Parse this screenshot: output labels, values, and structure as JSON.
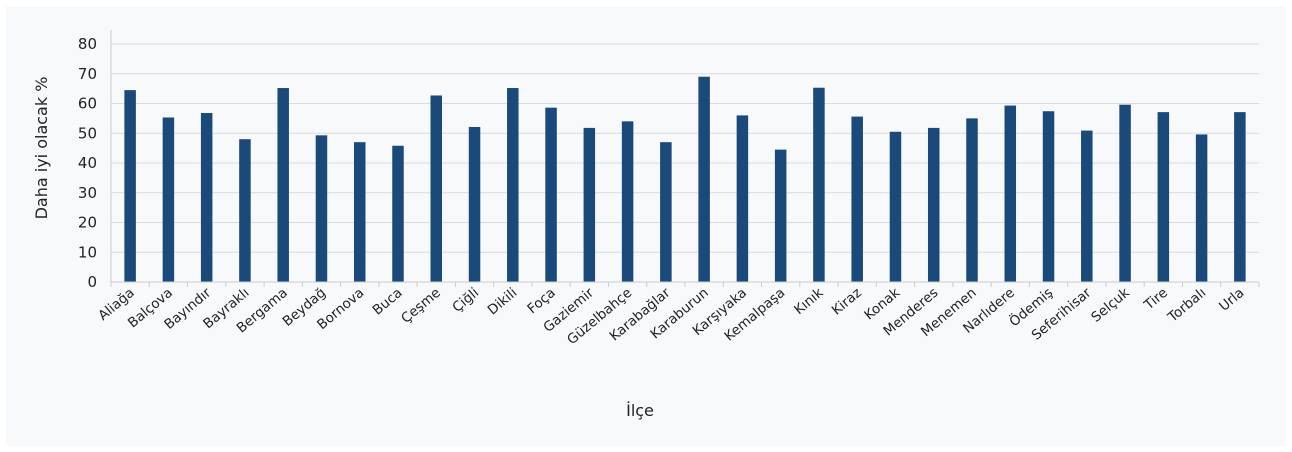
{
  "chart_data": {
    "type": "bar",
    "title": "",
    "xlabel": "İlçe",
    "ylabel": "Daha iyi olacak %",
    "ylim": [
      0,
      80
    ],
    "yticks": [
      0,
      10,
      20,
      30,
      40,
      50,
      60,
      70,
      80
    ],
    "grid": true,
    "bar_color": "#1a4a7a",
    "categories": [
      "Aliağa",
      "Balçova",
      "Bayındır",
      "Bayraklı",
      "Bergama",
      "Beydağ",
      "Bornova",
      "Buca",
      "Çeşme",
      "Çiğli",
      "Dikili",
      "Foça",
      "Gaziemir",
      "Güzelbahçe",
      "Karabağlar",
      "Karaburun",
      "Karşıyaka",
      "Kemalpaşa",
      "Kınık",
      "Kiraz",
      "Konak",
      "Menderes",
      "Menemen",
      "Narlıdere",
      "Ödemiş",
      "Seferihisar",
      "Selçuk",
      "Tire",
      "Torbalı",
      "Urla"
    ],
    "values": [
      64.5,
      55.3,
      56.8,
      48.0,
      65.2,
      49.3,
      47.0,
      45.8,
      62.7,
      52.1,
      65.2,
      58.6,
      51.8,
      54.0,
      47.0,
      69.0,
      56.0,
      44.5,
      65.3,
      55.6,
      50.5,
      51.8,
      55.0,
      59.3,
      57.4,
      50.9,
      59.6,
      57.1,
      49.6,
      57.1
    ]
  }
}
